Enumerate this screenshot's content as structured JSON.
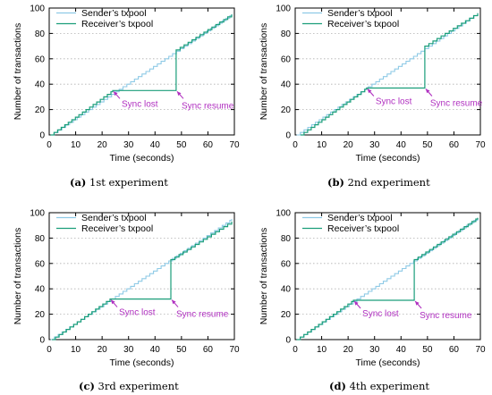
{
  "colors": {
    "sender": "#8ecae6",
    "receiver": "#1a9e7a",
    "annotation": "#b030c0",
    "grid": "#b0b0b0"
  },
  "chart_data": [
    {
      "type": "line",
      "panel_label": "(a)",
      "caption": "1st experiment",
      "xlabel": "Time (seconds)",
      "ylabel": "Number of transactions",
      "xlim": [
        0,
        70
      ],
      "ylim": [
        0,
        100
      ],
      "xticks": [
        0,
        10,
        20,
        30,
        40,
        50,
        60,
        70
      ],
      "yticks": [
        0,
        20,
        40,
        60,
        80,
        100
      ],
      "grid": "horizontal dotted",
      "legend_position": "top-left",
      "series": [
        {
          "name": "Sender’s txpool",
          "x": [
            0.5,
            69
          ],
          "y": [
            0,
            95
          ]
        },
        {
          "name": "Receiver’s txpool",
          "x": [
            0.5,
            24,
            48,
            48,
            69
          ],
          "y": [
            0,
            35,
            35,
            67,
            95
          ]
        }
      ],
      "annotations": [
        {
          "text": "Sync lost",
          "x": 24,
          "y": 35
        },
        {
          "text": "Sync resume",
          "x": 48,
          "y": 35
        }
      ]
    },
    {
      "type": "line",
      "panel_label": "(b)",
      "caption": "2nd experiment",
      "xlabel": "Time (seconds)",
      "ylabel": "Number of transactions",
      "xlim": [
        0,
        70
      ],
      "ylim": [
        0,
        100
      ],
      "xticks": [
        0,
        10,
        20,
        30,
        40,
        50,
        60,
        70
      ],
      "yticks": [
        0,
        20,
        40,
        60,
        80,
        100
      ],
      "grid": "horizontal dotted",
      "legend_position": "top-left",
      "series": [
        {
          "name": "Sender’s txpool",
          "x": [
            0.5,
            69
          ],
          "y": [
            0,
            96
          ]
        },
        {
          "name": "Receiver’s txpool",
          "x": [
            2,
            27,
            49,
            49,
            69
          ],
          "y": [
            0,
            37,
            37,
            70,
            96
          ]
        }
      ],
      "annotations": [
        {
          "text": "Sync lost",
          "x": 27,
          "y": 37
        },
        {
          "text": "Sync resume",
          "x": 49,
          "y": 37
        }
      ]
    },
    {
      "type": "line",
      "panel_label": "(c)",
      "caption": "3rd experiment",
      "xlabel": "Time (seconds)",
      "ylabel": "Number of transactions",
      "xlim": [
        0,
        70
      ],
      "ylim": [
        0,
        100
      ],
      "xticks": [
        0,
        10,
        20,
        30,
        40,
        50,
        60,
        70
      ],
      "yticks": [
        0,
        20,
        40,
        60,
        80,
        100
      ],
      "grid": "horizontal dotted",
      "legend_position": "top-left",
      "series": [
        {
          "name": "Sender’s txpool",
          "x": [
            0.5,
            69
          ],
          "y": [
            0,
            95
          ]
        },
        {
          "name": "Receiver’s txpool",
          "x": [
            1,
            23,
            46,
            46,
            69
          ],
          "y": [
            0,
            32,
            32,
            63,
            93
          ]
        }
      ],
      "annotations": [
        {
          "text": "Sync lost",
          "x": 23,
          "y": 32
        },
        {
          "text": "Sync resume",
          "x": 46,
          "y": 32
        }
      ]
    },
    {
      "type": "line",
      "panel_label": "(d)",
      "caption": "4th experiment",
      "xlabel": "Time (seconds)",
      "ylabel": "Number of transactions",
      "xlim": [
        0,
        70
      ],
      "ylim": [
        0,
        100
      ],
      "xticks": [
        0,
        10,
        20,
        30,
        40,
        50,
        60,
        70
      ],
      "yticks": [
        0,
        20,
        40,
        60,
        80,
        100
      ],
      "grid": "horizontal dotted",
      "legend_position": "top-left",
      "series": [
        {
          "name": "Sender’s txpool",
          "x": [
            0.5,
            69
          ],
          "y": [
            0,
            96
          ]
        },
        {
          "name": "Receiver’s txpool",
          "x": [
            0.5,
            22,
            45,
            45,
            69
          ],
          "y": [
            0,
            31,
            31,
            63,
            96
          ]
        }
      ],
      "annotations": [
        {
          "text": "Sync lost",
          "x": 22,
          "y": 31
        },
        {
          "text": "Sync resume",
          "x": 45,
          "y": 31
        }
      ]
    }
  ]
}
